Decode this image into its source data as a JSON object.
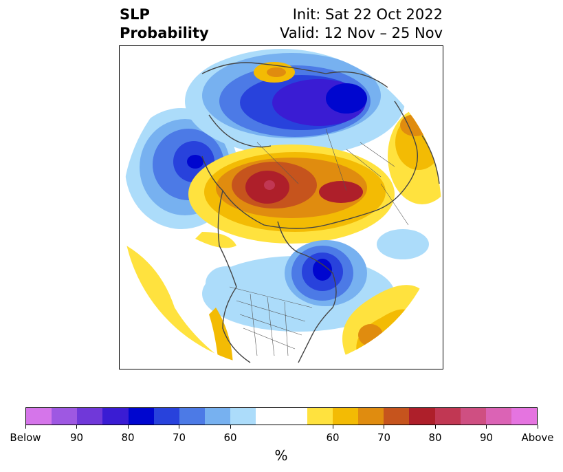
{
  "title": {
    "variable": "SLP",
    "product": "Probability",
    "init": "Init: Sat 22 Oct 2022",
    "valid": "Valid: 12 Nov – 25 Nov"
  },
  "colorbar": {
    "unit_label": "%",
    "colors": [
      "#d575ea",
      "#9e58e2",
      "#7038d9",
      "#3a1cd3",
      "#0006cf",
      "#2842dc",
      "#4c7ae6",
      "#77b1f0",
      "#acdcfa",
      "#ffffff",
      "#ffffff",
      "#ffe23e",
      "#f3bb04",
      "#e08c0f",
      "#c6541d",
      "#ae1f2a",
      "#c13753",
      "#cf4f82",
      "#db63b5",
      "#e574e0"
    ],
    "tick_labels": [
      "Below",
      "90",
      "80",
      "70",
      "60",
      "60",
      "70",
      "80",
      "90",
      "Above"
    ]
  },
  "map": {
    "projection": "north-polar-stereographic",
    "features": [
      {
        "name": "pacific-low",
        "category": "below",
        "strength": 80
      },
      {
        "name": "siberian-arctic-low",
        "category": "below",
        "strength": 80
      },
      {
        "name": "eastern-canada-low",
        "category": "below",
        "strength": 80
      },
      {
        "name": "scandinavia-europe-high",
        "category": "above",
        "strength": 80
      },
      {
        "name": "north-atlantic-high",
        "category": "above",
        "strength": 70
      },
      {
        "name": "east-asia-high",
        "category": "above",
        "strength": 70
      }
    ]
  }
}
